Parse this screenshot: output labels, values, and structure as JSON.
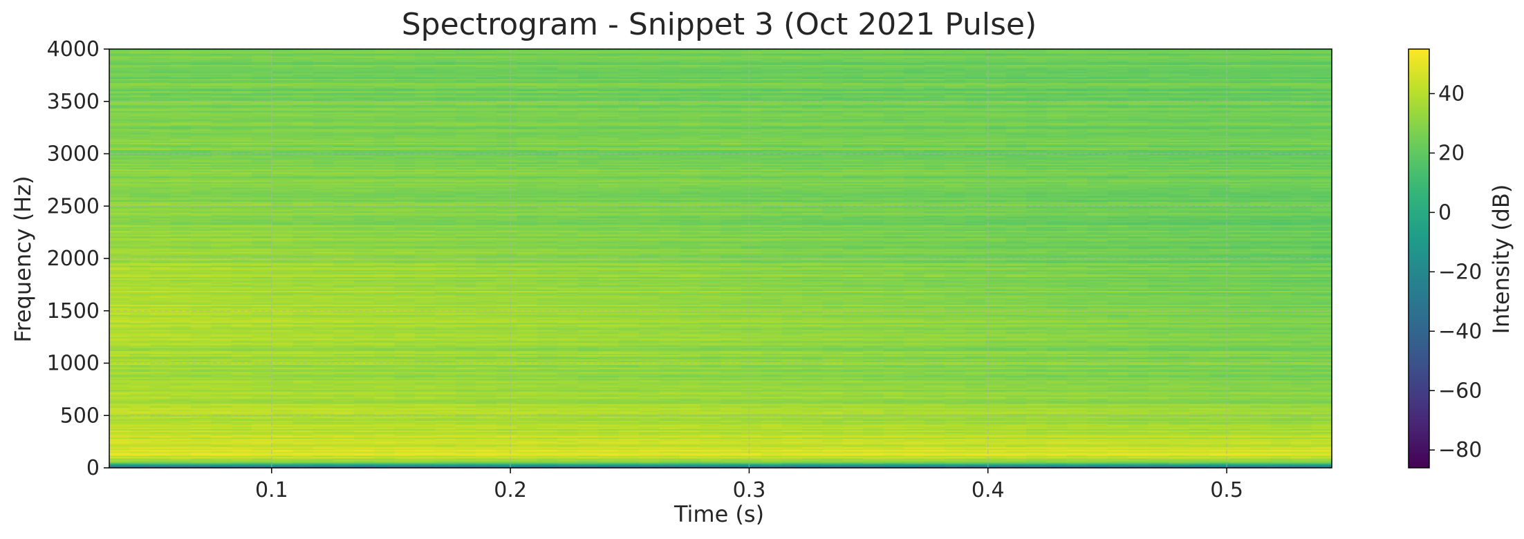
{
  "chart_data": {
    "type": "heatmap",
    "title": "Spectrogram - Snippet 3 (Oct 2021 Pulse)",
    "xlabel": "Time (s)",
    "ylabel": "Frequency (Hz)",
    "xlim": [
      0.032,
      0.544
    ],
    "ylim": [
      0,
      4000
    ],
    "xticks": [
      0.1,
      0.2,
      0.3,
      0.4,
      0.5
    ],
    "xtick_labels": [
      "0.1",
      "0.2",
      "0.3",
      "0.4",
      "0.5"
    ],
    "yticks": [
      0,
      500,
      1000,
      1500,
      2000,
      2500,
      3000,
      3500,
      4000
    ],
    "ytick_labels": [
      "0",
      "500",
      "1000",
      "1500",
      "2000",
      "2500",
      "3000",
      "3500",
      "4000"
    ],
    "grid": true,
    "colormap": "viridis",
    "colorbar": {
      "label": "Intensity (dB)",
      "range": [
        -86,
        55
      ],
      "ticks": [
        40,
        20,
        0,
        -20,
        -40,
        -60,
        -80
      ],
      "tick_labels": [
        "40",
        "20",
        "0",
        "−20",
        "−40",
        "−60",
        "−80"
      ]
    },
    "intensity_profile": {
      "frequency_hz": [
        0,
        30,
        60,
        100,
        150,
        200,
        300,
        500,
        800,
        1000,
        1200,
        1500,
        1700,
        2000,
        2500,
        3000,
        3500,
        4000
      ],
      "intensity_db_at_t_start": [
        -40,
        -5,
        30,
        45,
        48,
        46,
        42,
        40,
        37,
        36,
        38,
        40,
        39,
        35,
        30,
        29,
        27,
        25
      ],
      "intensity_db_at_t_end": [
        -40,
        -5,
        28,
        44,
        47,
        44,
        38,
        33,
        28,
        27,
        26,
        26,
        25,
        22,
        22,
        24,
        23,
        22
      ]
    }
  }
}
